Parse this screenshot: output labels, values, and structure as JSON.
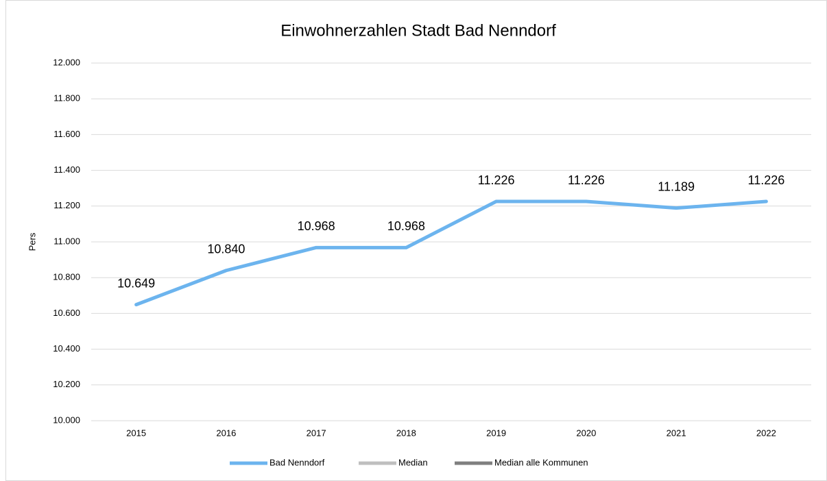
{
  "chart_data": {
    "type": "line",
    "title": "Einwohnerzahlen Stadt Bad Nenndorf",
    "y_label": "Pers",
    "categories": [
      "2015",
      "2016",
      "2017",
      "2018",
      "2019",
      "2020",
      "2021",
      "2022"
    ],
    "series": [
      {
        "name": "Bad Nenndorf",
        "color": "#6cb4ee",
        "values": [
          10649,
          10840,
          10968,
          10968,
          11226,
          11226,
          11189,
          11226
        ],
        "value_labels": [
          "10.649",
          "10.840",
          "10.968",
          "10.968",
          "11.226",
          "11.226",
          "11.189",
          "11.226"
        ]
      },
      {
        "name": "Median",
        "color": "#bfbfbf",
        "values": [
          null,
          null,
          null,
          null,
          null,
          null,
          null,
          null
        ]
      },
      {
        "name": "Median alle Kommunen",
        "color": "#7f7f7f",
        "values": [
          null,
          null,
          null,
          null,
          null,
          null,
          null,
          null
        ]
      }
    ],
    "ylim": [
      10000,
      12000
    ],
    "yticks": [
      {
        "value": 10000,
        "label": "10.000"
      },
      {
        "value": 10200,
        "label": "10.200"
      },
      {
        "value": 10400,
        "label": "10.400"
      },
      {
        "value": 10600,
        "label": "10.600"
      },
      {
        "value": 10800,
        "label": "10.800"
      },
      {
        "value": 11000,
        "label": "11.000"
      },
      {
        "value": 11200,
        "label": "11.200"
      },
      {
        "value": 11400,
        "label": "11.400"
      },
      {
        "value": 11600,
        "label": "11.600"
      },
      {
        "value": 11800,
        "label": "11.800"
      },
      {
        "value": 12000,
        "label": "12.000"
      }
    ],
    "grid": true,
    "legend": "bottom"
  }
}
